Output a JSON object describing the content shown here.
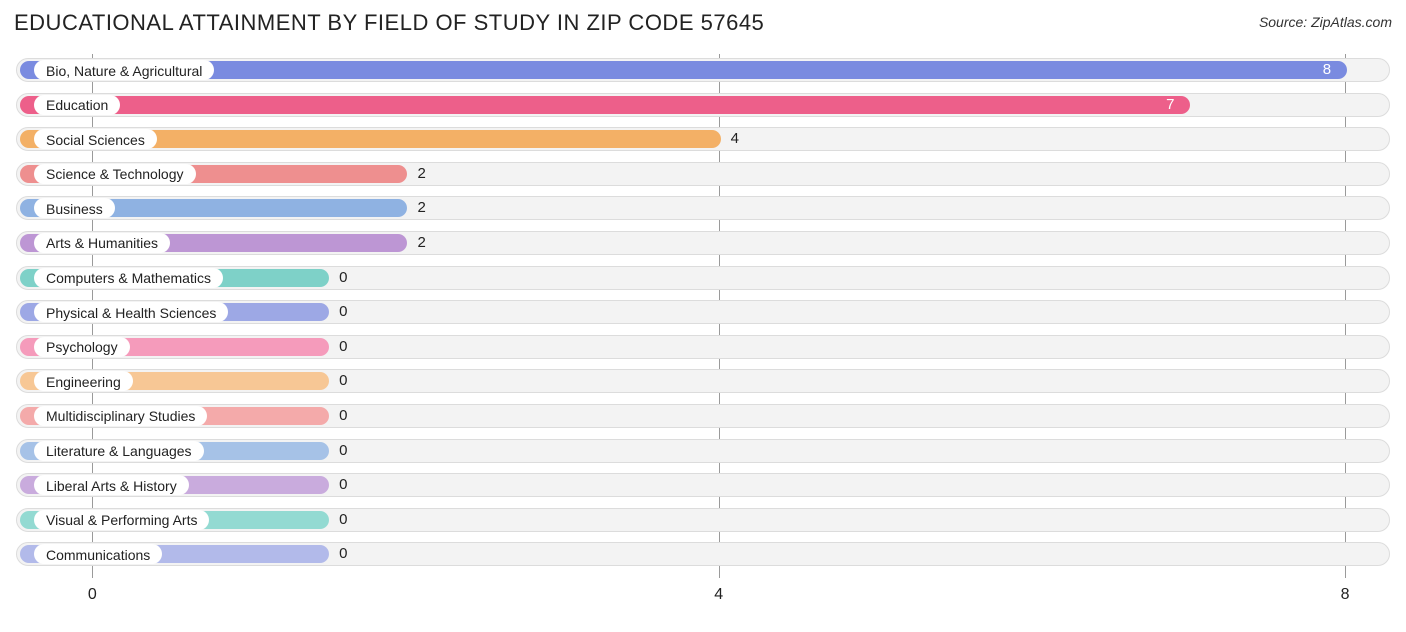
{
  "title": "EDUCATIONAL ATTAINMENT BY FIELD OF STUDY IN ZIP CODE 57645",
  "source": "Source: ZipAtlas.com",
  "chart": {
    "type": "bar-horizontal",
    "x_min": -0.5,
    "x_max": 8.3,
    "ticks": [
      0,
      4,
      8
    ],
    "track_bg": "#f3f3f3",
    "track_border": "#dcdcdc",
    "grid_color": "#9a9a9a",
    "badge_bg": "#ffffff",
    "label_fontsize": 14,
    "value_fontsize": 15,
    "title_fontsize": 22,
    "min_bar_x": 1.5,
    "rows": [
      {
        "label": "Bio, Nature & Agricultural",
        "value": 8,
        "color": "#7a8be0",
        "value_color": "#ffffff",
        "value_inside": true
      },
      {
        "label": "Education",
        "value": 7,
        "color": "#ed5f8a",
        "value_color": "#ffffff",
        "value_inside": true
      },
      {
        "label": "Social Sciences",
        "value": 4,
        "color": "#f3b066",
        "value_color": "#222222",
        "value_inside": false
      },
      {
        "label": "Science & Technology",
        "value": 2,
        "color": "#ee8f8f",
        "value_color": "#222222",
        "value_inside": false
      },
      {
        "label": "Business",
        "value": 2,
        "color": "#8fb2e2",
        "value_color": "#222222",
        "value_inside": false
      },
      {
        "label": "Arts & Humanities",
        "value": 2,
        "color": "#bd96d4",
        "value_color": "#222222",
        "value_inside": false
      },
      {
        "label": "Computers & Mathematics",
        "value": 0,
        "color": "#7ed1c8",
        "value_color": "#222222",
        "value_inside": false
      },
      {
        "label": "Physical & Health Sciences",
        "value": 0,
        "color": "#9da8e5",
        "value_color": "#222222",
        "value_inside": false
      },
      {
        "label": "Psychology",
        "value": 0,
        "color": "#f59bbb",
        "value_color": "#222222",
        "value_inside": false
      },
      {
        "label": "Engineering",
        "value": 0,
        "color": "#f7c795",
        "value_color": "#222222",
        "value_inside": false
      },
      {
        "label": "Multidisciplinary Studies",
        "value": 0,
        "color": "#f4aaaa",
        "value_color": "#222222",
        "value_inside": false
      },
      {
        "label": "Literature & Languages",
        "value": 0,
        "color": "#a6c2e7",
        "value_color": "#222222",
        "value_inside": false
      },
      {
        "label": "Liberal Arts & History",
        "value": 0,
        "color": "#c9abdd",
        "value_color": "#222222",
        "value_inside": false
      },
      {
        "label": "Visual & Performing Arts",
        "value": 0,
        "color": "#93dad2",
        "value_color": "#222222",
        "value_inside": false
      },
      {
        "label": "Communications",
        "value": 0,
        "color": "#b2baea",
        "value_color": "#222222",
        "value_inside": false
      }
    ]
  }
}
